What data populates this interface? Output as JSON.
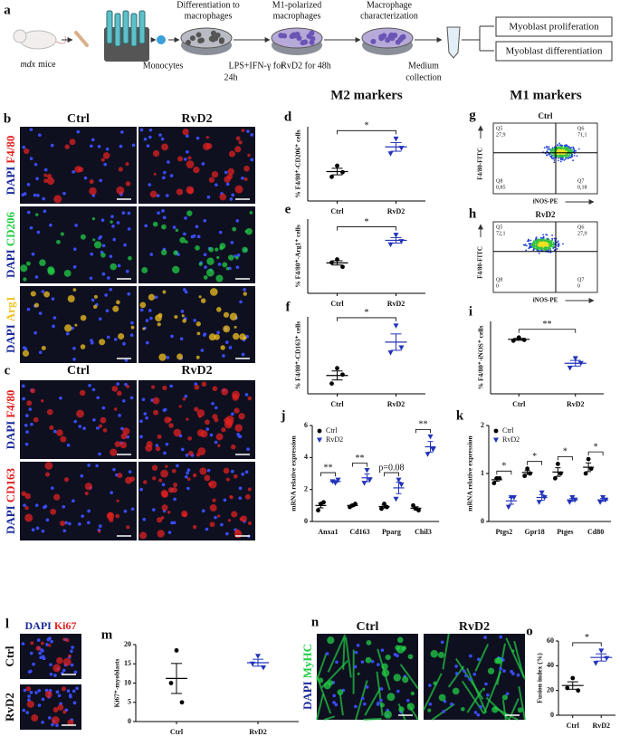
{
  "workflow": {
    "label": "a",
    "mouse_strain": "mdx",
    "mouse_label": "mice",
    "monocytes": "Monocytes",
    "step1": [
      "Differentiation to",
      "macrophages"
    ],
    "treatment1": [
      "LPS+IFN-γ for",
      "24h"
    ],
    "step2": [
      "M1-polarized",
      "macrophages"
    ],
    "treatment2": "RvD2 for 48h",
    "step3": [
      "Macrophage",
      "characterization"
    ],
    "collection": [
      "Medium",
      "collection"
    ],
    "outcomes": [
      "Myoblast proliferation",
      "Myoblast differentiation"
    ]
  },
  "headers": {
    "m2": "M2 markers",
    "m1": "M1 markers"
  },
  "micrographs": {
    "b": {
      "label": "b",
      "columns": [
        "Ctrl",
        "RvD2"
      ],
      "rows": [
        [
          "DAPI",
          "F4/80"
        ],
        [
          "DAPI",
          "CD206"
        ],
        [
          "DAPI",
          "Arg1"
        ]
      ]
    },
    "c": {
      "label": "c",
      "columns": [
        "Ctrl",
        "RvD2"
      ],
      "rows": [
        [
          "DAPI",
          "F4/80"
        ],
        [
          "DAPI",
          "CD163"
        ]
      ]
    },
    "l": {
      "label": "l",
      "header": [
        "DAPI",
        "Ki67"
      ],
      "rows": [
        "Ctrl",
        "RvD2"
      ]
    },
    "n": {
      "label": "n",
      "columns": [
        "Ctrl",
        "RvD2"
      ],
      "rows": [
        [
          "DAPI",
          "MyHC"
        ]
      ]
    }
  },
  "flow": {
    "g": {
      "label": "g",
      "title": "Ctrl",
      "xlabel": "iNOS-PE",
      "ylabel": "F4/80-FITC",
      "quadrants": [
        {
          "name": "Q5",
          "value": "27,9"
        },
        {
          "name": "Q6",
          "value": "71,1"
        },
        {
          "name": "Q8",
          "value": "0,85"
        },
        {
          "name": "Q7",
          "value": "0,18"
        }
      ]
    },
    "h": {
      "label": "h",
      "title": "RvD2",
      "xlabel": "iNOS-PE",
      "ylabel": "F4/80-FITC",
      "quadrants": [
        {
          "name": "Q5",
          "value": "72,1"
        },
        {
          "name": "Q6",
          "value": "27,9"
        },
        {
          "name": "Q8",
          "value": "0"
        },
        {
          "name": "Q7",
          "value": "0"
        }
      ]
    }
  },
  "chart_data": [
    {
      "type": "dotplot",
      "label": "d",
      "ylabel": "% F4/80⁺-CD206⁺ cells",
      "categories": [
        "Ctrl",
        "RvD2"
      ],
      "colors": [
        "#000000",
        "#2233bb"
      ],
      "markers": [
        "circle",
        "triangle"
      ],
      "points": [
        [
          38,
          26,
          31
        ],
        [
          67,
          51,
          57
        ]
      ],
      "mean": [
        31.7,
        58.3
      ],
      "sem": [
        3.5,
        4.7
      ],
      "ylim": [
        0,
        80
      ],
      "significance": "*"
    },
    {
      "type": "dotplot",
      "label": "e",
      "ylabel": "% F4/80⁺-Arg1⁺ cells",
      "categories": [
        "Ctrl",
        "RvD2"
      ],
      "colors": [
        "#000000",
        "#2233bb"
      ],
      "markers": [
        "circle",
        "triangle"
      ],
      "points": [
        [
          32,
          29,
          25
        ],
        [
          55,
          46,
          49
        ]
      ],
      "mean": [
        28.7,
        50
      ],
      "sem": [
        2,
        2.6
      ],
      "ylim": [
        0,
        70
      ],
      "significance": "*"
    },
    {
      "type": "dotplot",
      "label": "f",
      "ylabel": "% F4/80⁺-CD163⁺ cells",
      "categories": [
        "Ctrl",
        "RvD2"
      ],
      "colors": [
        "#000000",
        "#2233bb"
      ],
      "markers": [
        "circle",
        "triangle"
      ],
      "points": [
        [
          20,
          8,
          15
        ],
        [
          53,
          32,
          36
        ]
      ],
      "mean": [
        14.3,
        40.3
      ],
      "sem": [
        3.5,
        6.4
      ],
      "ylim": [
        0,
        60
      ],
      "significance": "*"
    },
    {
      "type": "dotplot",
      "label": "i",
      "ylabel": "% F4/80⁺-iNOS⁺ cells",
      "categories": [
        "Ctrl",
        "RvD2"
      ],
      "colors": [
        "#000000",
        "#2233bb"
      ],
      "markers": [
        "circle",
        "triangle"
      ],
      "points": [
        [
          70,
          66,
          67
        ],
        [
          44,
          32,
          38
        ]
      ],
      "mean": [
        67.7,
        38
      ],
      "sem": [
        1.2,
        3.5
      ],
      "ylim": [
        0,
        90
      ],
      "significance": "**"
    },
    {
      "type": "dotplot",
      "label": "m",
      "ylabel": "Ki67⁺-myoblasts",
      "categories": [
        "Ctrl",
        "RvD2"
      ],
      "colors": [
        "#000000",
        "#2233bb"
      ],
      "markers": [
        "circle",
        "triangle"
      ],
      "points": [
        [
          18.5,
          10,
          5
        ],
        [
          17,
          15,
          14
        ]
      ],
      "mean": [
        11.2,
        15.3
      ],
      "sem": [
        3.9,
        0.9
      ],
      "ylim": [
        0,
        20
      ],
      "yticks": [
        0,
        5,
        10,
        15,
        20
      ]
    },
    {
      "type": "dotplot",
      "label": "o",
      "ylabel": "Fusion index (%)",
      "categories": [
        "Ctrl",
        "RvD2"
      ],
      "colors": [
        "#000000",
        "#2233bb"
      ],
      "markers": [
        "circle",
        "triangle"
      ],
      "points": [
        [
          30,
          22,
          20
        ],
        [
          52,
          42,
          46
        ]
      ],
      "mean": [
        24,
        46.7
      ],
      "sem": [
        3,
        2.9
      ],
      "ylim": [
        0,
        60
      ],
      "yticks": [
        0,
        20,
        40,
        60
      ],
      "significance": "*"
    },
    {
      "type": "grouped-dotplot",
      "label": "j",
      "ylabel": "mRNA relative expression",
      "categories": [
        "Anxa1",
        "Cd163",
        "Pparg",
        "Chil3"
      ],
      "ylim": [
        0,
        6
      ],
      "yticks": [
        0,
        2,
        4,
        6
      ],
      "legend": "top-left",
      "series": [
        {
          "name": "Ctrl",
          "color": "#000000",
          "marker": "circle",
          "points": [
            [
              1.1,
              0.7,
              1.2
            ],
            [
              1.0,
              0.9,
              1.1
            ],
            [
              1.1,
              0.8,
              0.9
            ],
            [
              0.8,
              1.0,
              0.7
            ]
          ],
          "mean": [
            1,
            1,
            0.93,
            0.83
          ],
          "sem": [
            0.15,
            0.06,
            0.09,
            0.09
          ]
        },
        {
          "name": "RvD2",
          "color": "#2233bb",
          "marker": "triangle",
          "points": [
            [
              2.4,
              2.5,
              2.6
            ],
            [
              3.2,
              2.4,
              2.6
            ],
            [
              2.6,
              1.4,
              2.3
            ],
            [
              5.3,
              4.2,
              4.5
            ]
          ],
          "mean": [
            2.5,
            2.73,
            2.1,
            4.67
          ],
          "sem": [
            0.06,
            0.24,
            0.36,
            0.33
          ]
        }
      ],
      "significance": [
        "**",
        "**",
        "p=0.08",
        "**"
      ]
    },
    {
      "type": "grouped-dotplot",
      "label": "k",
      "ylabel": "mRNA relative expression",
      "categories": [
        "Ptgs2",
        "Gpr18",
        "Ptges",
        "Cd80"
      ],
      "ylim": [
        0,
        2
      ],
      "yticks": [
        0,
        1,
        2
      ],
      "legend": "top-left",
      "series": [
        {
          "name": "Ctrl",
          "color": "#000000",
          "marker": "circle",
          "points": [
            [
              0.9,
              0.8,
              0.9
            ],
            [
              1.1,
              0.95,
              1.0
            ],
            [
              1.2,
              0.9,
              1.0
            ],
            [
              1.3,
              1.0,
              1.1
            ]
          ],
          "mean": [
            0.87,
            1.02,
            1.03,
            1.13
          ],
          "sem": [
            0.03,
            0.04,
            0.09,
            0.09
          ]
        },
        {
          "name": "RvD2",
          "color": "#2233bb",
          "marker": "triangle",
          "points": [
            [
              0.5,
              0.3,
              0.5
            ],
            [
              0.6,
              0.4,
              0.5
            ],
            [
              0.5,
              0.4,
              0.45
            ],
            [
              0.5,
              0.4,
              0.45
            ]
          ],
          "mean": [
            0.43,
            0.5,
            0.45,
            0.45
          ],
          "sem": [
            0.07,
            0.06,
            0.03,
            0.03
          ]
        }
      ],
      "significance": [
        "*",
        "*",
        "*",
        "*"
      ]
    }
  ]
}
